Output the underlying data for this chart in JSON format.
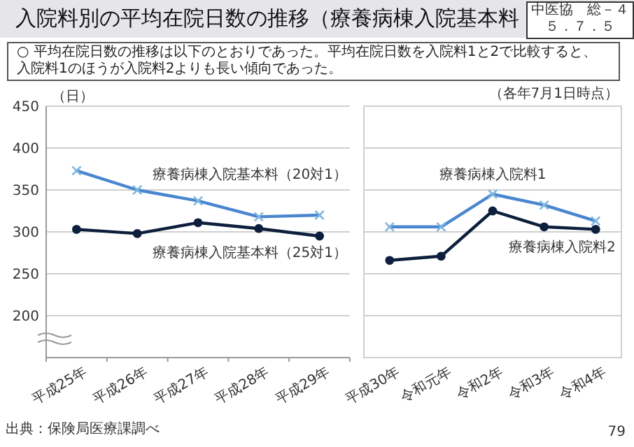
{
  "chart_data": [
    {
      "type": "line",
      "title": "入院料別の平均在院日数の推移（療養病棟入院基本料",
      "subtitle": "○ 平均在院日数の推移は以下のとおりであった。平均在院日数を入院料1と2で比較すると、入院料1のほうが入院料2よりも長い傾向であった。",
      "ylabel": "（日）",
      "annotations": [
        "中医協　総－４",
        "５．７．５",
        "出典：保険局医療課調べ",
        "79"
      ],
      "categories": [
        "平成25年",
        "平成26年",
        "平成27年",
        "平成28年",
        "平成29年"
      ],
      "series": [
        {
          "name": "療養病棟入院基本料（20対1）",
          "color": "#4a86d0",
          "marker": "cross",
          "values": [
            373,
            350,
            337,
            318,
            320
          ]
        },
        {
          "name": "療養病棟入院基本料（25対1）",
          "color": "#0d1f3c",
          "marker": "circle",
          "values": [
            303,
            298,
            311,
            304,
            295
          ]
        }
      ],
      "ylim": [
        150,
        450
      ],
      "yticks": [
        200,
        250,
        300,
        350,
        400,
        450
      ],
      "grid": "y"
    },
    {
      "type": "line",
      "annotations": [
        "（各年7月1日時点）"
      ],
      "categories": [
        "平成30年",
        "令和元年",
        "令和2年",
        "令和3年",
        "令和4年"
      ],
      "series": [
        {
          "name": "療養病棟入院料1",
          "color": "#4a86d0",
          "marker": "cross",
          "values": [
            306,
            306,
            345,
            332,
            313
          ]
        },
        {
          "name": "療養病棟入院料2",
          "color": "#0d1f3c",
          "marker": "circle",
          "values": [
            266,
            271,
            325,
            306,
            303
          ]
        }
      ],
      "ylim": [
        150,
        450
      ],
      "yticks": [
        200,
        250,
        300,
        350,
        400,
        450
      ],
      "grid": "y",
      "tick_labels": "x"
    }
  ]
}
